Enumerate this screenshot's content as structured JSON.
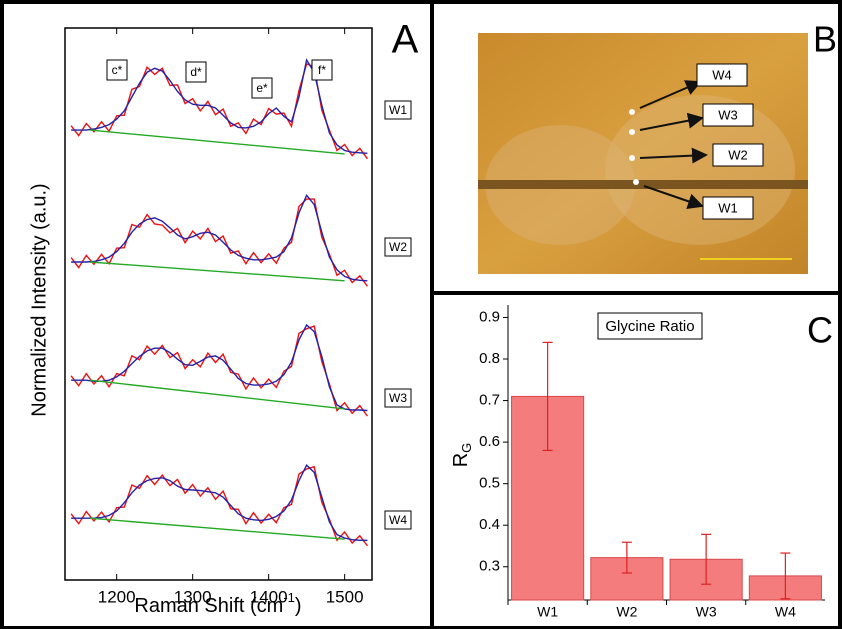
{
  "chart_data": [
    {
      "type": "line",
      "panel_label": "A",
      "y_label": "Normalized Intensity (a.u.)",
      "x_label": {
        "text": "Raman Shift (cm",
        "sup": "-1",
        "tail": ")"
      },
      "xlim": [
        1132,
        1536
      ],
      "xticks": [
        1200,
        1300,
        1400,
        1500
      ],
      "ylim": [
        0,
        10
      ],
      "raw_color": "#ee1111",
      "fit_color": "#2222aa",
      "baseline_color": "#22aa22",
      "annotations": [
        "c*",
        "d*",
        "e*",
        "f*"
      ],
      "x": [
        1140,
        1150,
        1160,
        1170,
        1180,
        1190,
        1200,
        1210,
        1220,
        1230,
        1240,
        1250,
        1260,
        1270,
        1280,
        1290,
        1300,
        1310,
        1320,
        1330,
        1340,
        1350,
        1360,
        1370,
        1380,
        1390,
        1400,
        1410,
        1420,
        1430,
        1440,
        1450,
        1460,
        1470,
        1480,
        1490,
        1500,
        1510,
        1520,
        1530
      ],
      "baseline_x": [
        1165,
        1500
      ],
      "series": [
        {
          "name": "W1",
          "raw": [
            8.23,
            8.05,
            8.27,
            8.12,
            8.3,
            8.13,
            8.41,
            8.42,
            8.89,
            8.94,
            9.29,
            9.16,
            9.27,
            8.96,
            8.97,
            8.63,
            8.72,
            8.5,
            8.67,
            8.43,
            8.53,
            8.22,
            8.28,
            8.09,
            8.35,
            8.25,
            8.54,
            8.44,
            8.46,
            8.22,
            8.87,
            9.35,
            9.3,
            8.51,
            8.15,
            7.78,
            7.89,
            7.69,
            7.82,
            7.63
          ],
          "fit": [
            8.15,
            8.15,
            8.15,
            8.17,
            8.2,
            8.25,
            8.35,
            8.5,
            8.75,
            9.0,
            9.2,
            9.27,
            9.22,
            9.05,
            8.85,
            8.7,
            8.62,
            8.6,
            8.6,
            8.55,
            8.42,
            8.28,
            8.2,
            8.19,
            8.22,
            8.3,
            8.45,
            8.55,
            8.4,
            8.3,
            8.75,
            9.42,
            9.2,
            8.6,
            8.1,
            7.88,
            7.78,
            7.75,
            7.74,
            7.73
          ],
          "baseline": [
            8.15,
            7.72
          ]
        },
        {
          "name": "W2",
          "raw": [
            5.84,
            5.66,
            5.88,
            5.72,
            5.9,
            5.73,
            6.01,
            6.02,
            6.44,
            6.39,
            6.62,
            6.45,
            6.43,
            6.29,
            6.37,
            6.11,
            6.32,
            6.18,
            6.37,
            6.13,
            6.23,
            5.92,
            5.96,
            5.73,
            5.93,
            5.75,
            5.91,
            5.74,
            6.01,
            6.12,
            6.77,
            6.9,
            6.9,
            6.21,
            5.9,
            5.52,
            5.61,
            5.39,
            5.51,
            5.32
          ],
          "fit": [
            5.76,
            5.76,
            5.76,
            5.77,
            5.8,
            5.85,
            5.95,
            6.1,
            6.3,
            6.45,
            6.53,
            6.56,
            6.5,
            6.38,
            6.25,
            6.18,
            6.22,
            6.28,
            6.3,
            6.25,
            6.12,
            5.98,
            5.88,
            5.83,
            5.8,
            5.8,
            5.82,
            5.85,
            5.95,
            6.2,
            6.65,
            6.97,
            6.8,
            6.3,
            5.85,
            5.62,
            5.5,
            5.45,
            5.43,
            5.42
          ],
          "baseline": [
            5.76,
            5.42
          ]
        },
        {
          "name": "W3",
          "raw": [
            3.7,
            3.52,
            3.74,
            3.55,
            3.7,
            3.5,
            3.74,
            3.7,
            4.06,
            3.99,
            4.24,
            4.09,
            4.25,
            4.03,
            4.12,
            3.83,
            3.99,
            3.86,
            4.11,
            3.94,
            4.09,
            3.76,
            3.73,
            3.46,
            3.66,
            3.48,
            3.64,
            3.49,
            3.78,
            3.87,
            4.47,
            4.55,
            4.6,
            3.96,
            3.55,
            3.07,
            3.21,
            3.02,
            3.16,
            2.97
          ],
          "fit": [
            3.62,
            3.62,
            3.62,
            3.6,
            3.6,
            3.62,
            3.68,
            3.78,
            3.92,
            4.05,
            4.15,
            4.2,
            4.2,
            4.12,
            4.0,
            3.9,
            3.89,
            3.96,
            4.04,
            4.06,
            3.98,
            3.82,
            3.65,
            3.56,
            3.53,
            3.53,
            3.55,
            3.6,
            3.72,
            3.95,
            4.35,
            4.62,
            4.5,
            4.05,
            3.5,
            3.17,
            3.1,
            3.08,
            3.08,
            3.07
          ],
          "baseline": [
            3.62,
            3.1
          ]
        },
        {
          "name": "W4",
          "raw": [
            1.2,
            1.02,
            1.24,
            1.07,
            1.23,
            1.05,
            1.31,
            1.32,
            1.72,
            1.66,
            1.89,
            1.73,
            1.9,
            1.71,
            1.82,
            1.57,
            1.73,
            1.52,
            1.67,
            1.46,
            1.61,
            1.29,
            1.28,
            1.02,
            1.22,
            1.03,
            1.19,
            1.04,
            1.31,
            1.37,
            1.92,
            2.01,
            2.05,
            1.41,
            1.1,
            0.72,
            0.87,
            0.67,
            0.8,
            0.62
          ],
          "fit": [
            1.12,
            1.12,
            1.12,
            1.12,
            1.13,
            1.17,
            1.25,
            1.4,
            1.58,
            1.72,
            1.8,
            1.84,
            1.85,
            1.8,
            1.7,
            1.64,
            1.63,
            1.62,
            1.6,
            1.58,
            1.5,
            1.35,
            1.2,
            1.12,
            1.09,
            1.08,
            1.1,
            1.15,
            1.25,
            1.45,
            1.8,
            2.08,
            1.95,
            1.5,
            1.05,
            0.82,
            0.76,
            0.73,
            0.72,
            0.72
          ],
          "baseline": [
            1.12,
            0.74
          ]
        }
      ]
    },
    {
      "type": "image",
      "panel_label": "B",
      "labels": [
        "W4",
        "W3",
        "W2",
        "W1"
      ]
    },
    {
      "type": "bar",
      "panel_label": "C",
      "title": "Glycine Ratio",
      "y_label": {
        "text": "R",
        "sub": "G"
      },
      "categories": [
        "W1",
        "W2",
        "W3",
        "W4"
      ],
      "values": [
        0.71,
        0.322,
        0.318,
        0.278
      ],
      "errors": [
        0.13,
        0.037,
        0.06,
        0.055
      ],
      "ylim": [
        0.22,
        0.93
      ],
      "yticks": [
        0.3,
        0.4,
        0.5,
        0.6,
        0.7,
        0.8,
        0.9
      ],
      "color": "#f47c7c",
      "edge_color": "#d84848",
      "error_color": "#e02020"
    }
  ]
}
